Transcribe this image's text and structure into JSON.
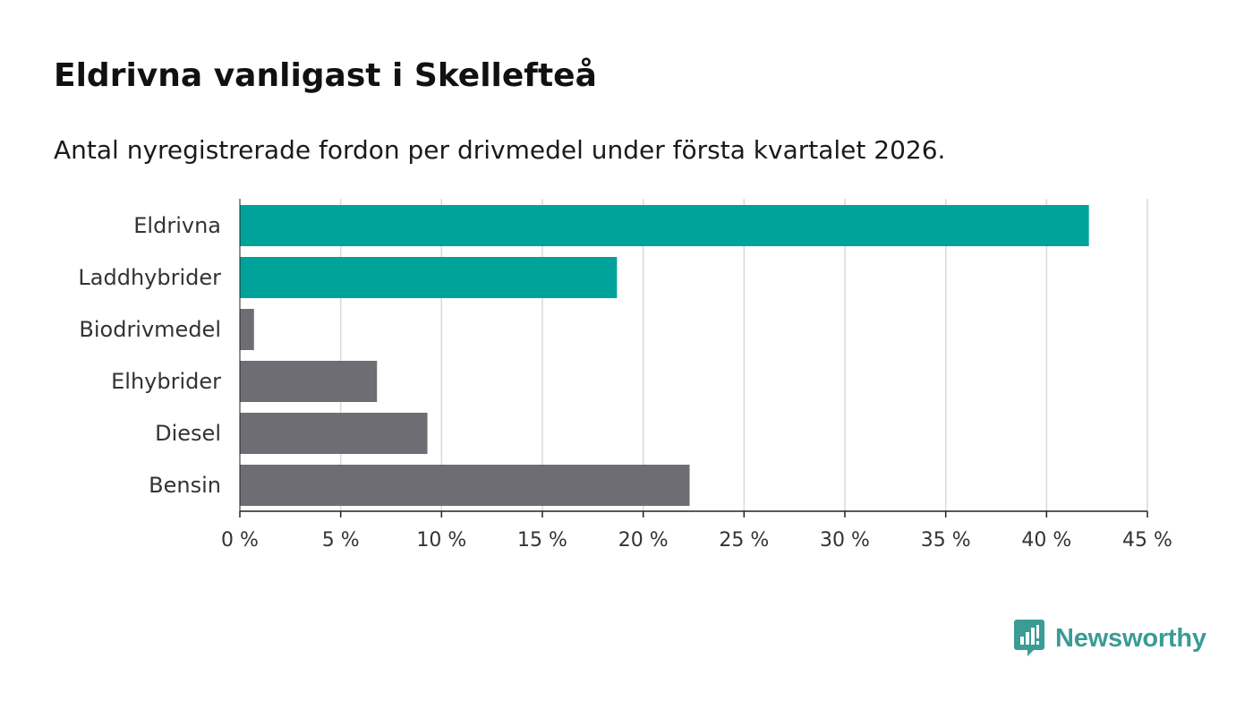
{
  "chart_data": {
    "type": "bar",
    "orientation": "horizontal",
    "title": "Eldrivna vanligast i Skellefteå",
    "subtitle": "Antal nyregistrerade fordon per drivmedel under första kvartalet 2026.",
    "categories": [
      "Eldrivna",
      "Laddhybrider",
      "Biodrivmedel",
      "Elhybrider",
      "Diesel",
      "Bensin"
    ],
    "values": [
      42.1,
      18.7,
      0.7,
      6.8,
      9.3,
      22.3
    ],
    "bar_colors": [
      "#00a39a",
      "#00a39a",
      "#6e6d73",
      "#6e6d73",
      "#6e6d73",
      "#6e6d73"
    ],
    "xlim": [
      0,
      45
    ],
    "xticks": [
      0,
      5,
      10,
      15,
      20,
      25,
      30,
      35,
      40,
      45
    ],
    "xtick_labels": [
      "0 %",
      "5 %",
      "10 %",
      "15 %",
      "20 %",
      "25 %",
      "30 %",
      "35 %",
      "40 %",
      "45 %"
    ],
    "xlabel": "",
    "ylabel": "",
    "grid": true
  },
  "brand": {
    "name": "Newsworthy",
    "color": "#3a9c94"
  }
}
